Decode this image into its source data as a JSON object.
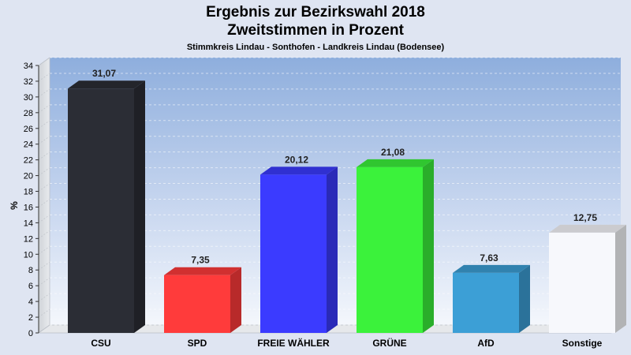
{
  "chart_data": {
    "type": "bar",
    "title": "Ergebnis zur Bezirkswahl 2018",
    "subtitle": "Zweitstimmen in Prozent",
    "subsubtitle": "Stimmkreis Lindau - Sonthofen - Landkreis Lindau (Bodensee)",
    "xlabel": "",
    "ylabel": "%",
    "ylim": [
      0,
      34
    ],
    "ytick_step": 2,
    "grid": true,
    "value_labels": [
      "31,07",
      "7,35",
      "20,12",
      "21,08",
      "7,63",
      "12,75"
    ],
    "categories": [
      "CSU",
      "SPD",
      "FREIE WÄHLER",
      "GRÜNE",
      "AfD",
      "Sonstige"
    ],
    "values": [
      31.07,
      7.35,
      20.12,
      21.08,
      7.63,
      12.75
    ],
    "colors": [
      "#2b2d35",
      "#ff3b3b",
      "#3b3bff",
      "#3bf23b",
      "#3c9fd6",
      "#f7f8fc"
    ]
  }
}
